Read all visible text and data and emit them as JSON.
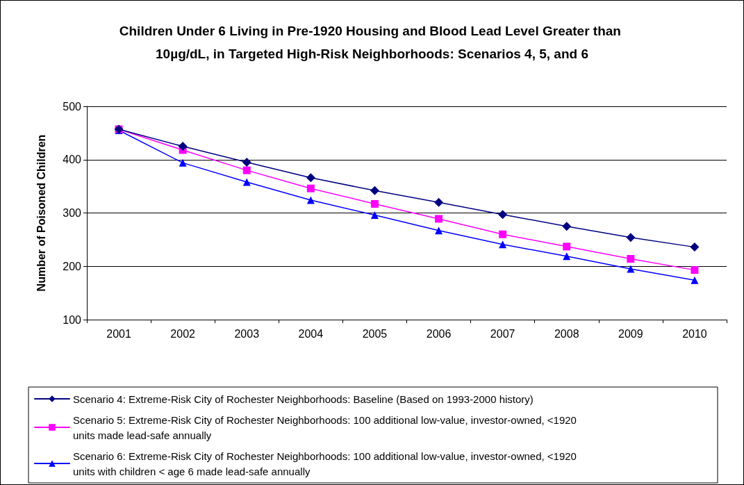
{
  "chart_data": {
    "type": "line",
    "title": "Children Under 6 Living in Pre-1920 Housing and Blood Lead Level Greater than 10µg/dL, in Targeted High-Risk Neighborhoods: Scenarios 4, 5, and 6",
    "ylabel": "Number of Poisoned Children",
    "categories": [
      "2001",
      "2002",
      "2003",
      "2004",
      "2005",
      "2006",
      "2007",
      "2008",
      "2009",
      "2010"
    ],
    "series": [
      {
        "name": "Scenario 4: Extreme-Risk City of Rochester Neighborhoods: Baseline (Based on 1993-2000 history)",
        "color": "#000080",
        "marker": "diamond",
        "values": [
          457,
          425,
          395,
          366,
          342,
          320,
          297,
          275,
          254,
          236
        ]
      },
      {
        "name": "Scenario 5: Extreme-Risk City of Rochester Neighborhoods: 100 additional low-value, investor-owned, <1920 units made lead-safe annually",
        "color": "#ff00ff",
        "marker": "square",
        "values": [
          457,
          418,
          380,
          346,
          317,
          289,
          260,
          237,
          214,
          193
        ]
      },
      {
        "name": "Scenario 6: Extreme-Risk City of Rochester Neighborhoods: 100 additional low-value, investor-owned, <1920 units with children < age 6 made lead-safe annually",
        "color": "#0000ff",
        "marker": "triangle",
        "values": [
          455,
          394,
          358,
          324,
          296,
          267,
          241,
          219,
          195,
          174
        ]
      }
    ],
    "ylim": [
      100,
      500
    ],
    "yticks": [
      100,
      200,
      300,
      400,
      500
    ],
    "grid": "y",
    "legend": "bottom",
    "line_style": "solid"
  }
}
